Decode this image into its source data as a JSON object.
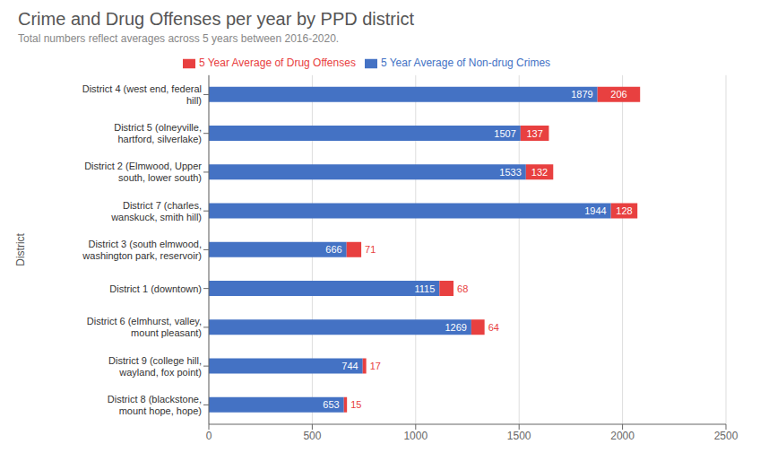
{
  "chart_data": {
    "type": "bar",
    "orientation": "horizontal",
    "stacked": true,
    "title": "Crime and Drug Offenses per year by PPD district",
    "subtitle": "Total numbers reflect averages across 5 years between 2016-2020.",
    "ylabel": "District",
    "categories": [
      "District 4 (west end, federal\nhill)",
      "District 5 (olneyville,\nhartford, silverlake)",
      "District 2 (Elmwood, Upper\nsouth, lower south)",
      "District 7 (charles,\nwanskuck, smith hill)",
      "District 3 (south elmwood,\nwashington park, reservoir)",
      "District 1 (downtown)",
      "District 6 (elmhurst, valley,\nmount pleasant)",
      "District 9 (college hill,\nwayland, fox point)",
      "District 8 (blackstone,\nmount hope, hope)"
    ],
    "series": [
      {
        "name": "5 Year Average of Non-drug Crimes",
        "color": "#4472C4",
        "values": [
          1879,
          1507,
          1533,
          1944,
          666,
          1115,
          1269,
          744,
          653
        ]
      },
      {
        "name": "5 Year Average of Drug Offenses",
        "color": "#E84040",
        "values": [
          206,
          137,
          132,
          128,
          71,
          68,
          64,
          17,
          15
        ]
      }
    ],
    "xlim": [
      0,
      2500
    ],
    "xticks": [
      0,
      500,
      1000,
      1500,
      2000,
      2500
    ],
    "grid": true,
    "legend": "top",
    "data_labels": true
  }
}
